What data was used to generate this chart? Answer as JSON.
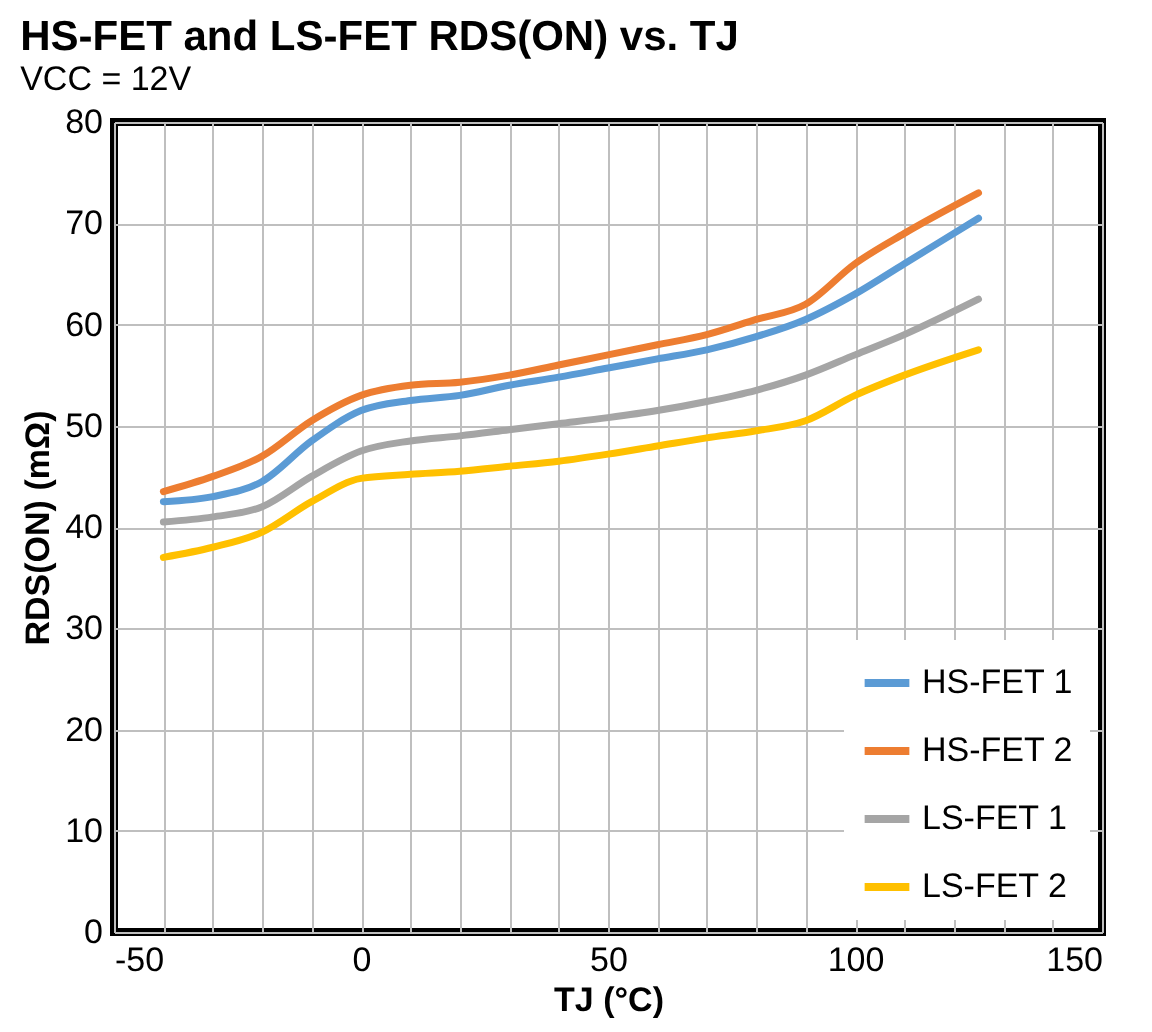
{
  "chart_data": {
    "type": "line",
    "title": "HS-FET and LS-FET RDS(ON) vs. TJ",
    "subtitle": "VCC = 12V",
    "xlabel": "TJ (°C)",
    "ylabel": "RDS(ON) (mΩ)",
    "x": [
      -40,
      -30,
      -20,
      -10,
      0,
      10,
      20,
      30,
      40,
      50,
      60,
      70,
      80,
      90,
      100,
      110,
      125
    ],
    "series": [
      {
        "name": "HS-FET 1",
        "color": "#5b9bd5",
        "values": [
          42.5,
          43,
          44.5,
          48.5,
          51.5,
          52.5,
          53,
          54,
          54.8,
          55.7,
          56.6,
          57.5,
          58.8,
          60.5,
          63,
          66,
          70.5
        ]
      },
      {
        "name": "HS-FET 2",
        "color": "#ed7d31",
        "values": [
          43.5,
          45,
          47,
          50.5,
          53,
          54,
          54.3,
          55,
          56,
          57,
          58,
          59,
          60.5,
          62,
          66,
          69,
          73
        ]
      },
      {
        "name": "LS-FET 1",
        "color": "#a5a5a5",
        "values": [
          40.5,
          41,
          42,
          45,
          47.5,
          48.5,
          49,
          49.6,
          50.2,
          50.8,
          51.5,
          52.4,
          53.5,
          55,
          57,
          59,
          62.5
        ]
      },
      {
        "name": "LS-FET 2",
        "color": "#ffc000",
        "values": [
          37,
          38,
          39.5,
          42.5,
          44.8,
          45.2,
          45.5,
          46,
          46.5,
          47.2,
          48,
          48.8,
          49.5,
          50.5,
          53,
          55,
          57.5
        ]
      }
    ],
    "xlim": [
      -50,
      150
    ],
    "ylim": [
      0,
      80
    ],
    "xticks": [
      -50,
      {
        "value": -40,
        "label": null
      },
      {
        "value": -30,
        "label": null
      },
      {
        "value": -20,
        "label": null
      },
      {
        "value": -10,
        "label": null
      },
      0,
      {
        "value": 10,
        "label": null
      },
      {
        "value": 20,
        "label": null
      },
      {
        "value": 30,
        "label": null
      },
      {
        "value": 40,
        "label": null
      },
      50,
      {
        "value": 60,
        "label": null
      },
      {
        "value": 70,
        "label": null
      },
      {
        "value": 80,
        "label": null
      },
      {
        "value": 90,
        "label": null
      },
      100,
      {
        "value": 110,
        "label": null
      },
      {
        "value": 120,
        "label": null
      },
      {
        "value": 130,
        "label": null
      },
      {
        "value": 140,
        "label": null
      },
      150
    ],
    "yticks": [
      0,
      10,
      20,
      30,
      40,
      50,
      60,
      70,
      80
    ],
    "grid": true,
    "legend": "bottom right",
    "marker": "none",
    "line_style": "solid"
  }
}
